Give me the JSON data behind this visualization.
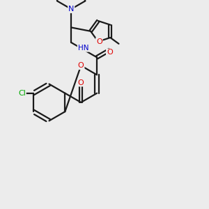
{
  "background_color": "#ececec",
  "bond_color": "#1a1a1a",
  "bond_width": 1.6,
  "atom_colors": {
    "O": "#e00000",
    "N": "#0000cc",
    "Cl": "#00aa00",
    "C": "#1a1a1a",
    "H": "#444444"
  },
  "figsize": [
    3.0,
    3.0
  ],
  "dpi": 100
}
